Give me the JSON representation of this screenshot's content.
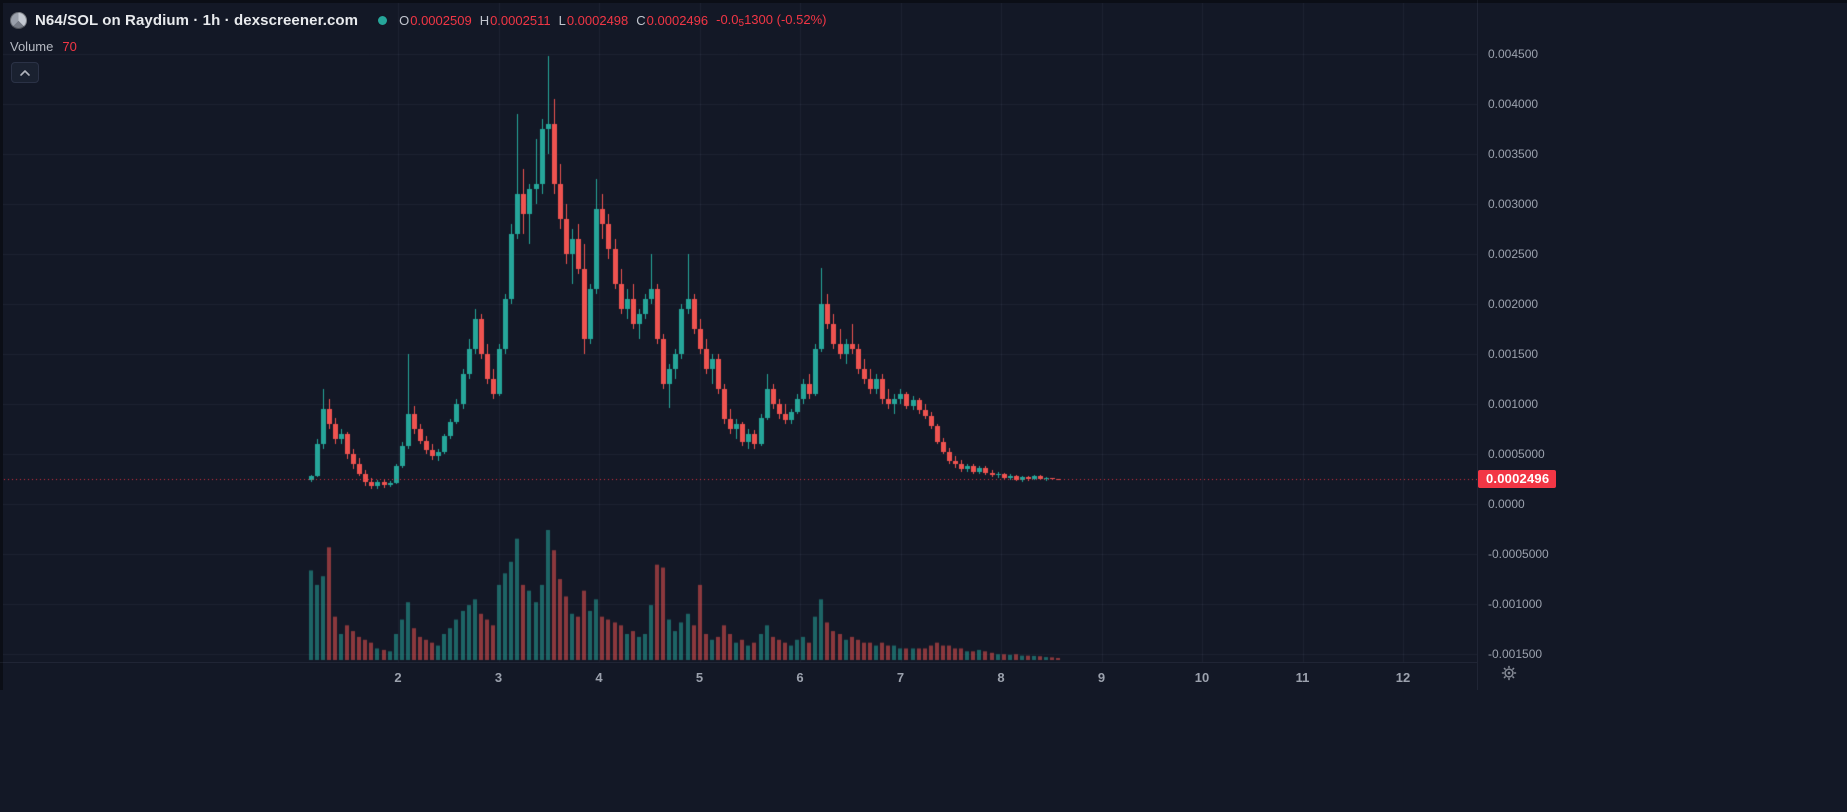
{
  "colors": {
    "background": "#131826",
    "up": "#26a69a",
    "down": "#ef5350",
    "accent_red": "#f23645",
    "tag_background": "#f23645",
    "title_text": "#e8eaed",
    "muted_text": "#9ba1ad"
  },
  "legend": {
    "title": "N64/SOL on Raydium · 1h · dexscreener.com",
    "ohlc": {
      "o_label": "O",
      "o": "0.0002509",
      "h_label": "H",
      "h": "0.0002511",
      "l_label": "L",
      "l": "0.0002498",
      "c_label": "C",
      "c": "0.0002496",
      "change_prefix": "-0.0",
      "change_sub": "5",
      "change_tail": "1300 (-0.52%)"
    },
    "volume_label": "Volume",
    "volume_value": "70"
  },
  "price_axis": {
    "labels": [
      "0.004500",
      "0.004000",
      "0.003500",
      "0.003000",
      "0.002500",
      "0.002000",
      "0.001500",
      "0.001000",
      "0.0005000",
      "0.0000",
      "-0.0005000",
      "-0.001000",
      "-0.001500"
    ],
    "last_price_tag": "0.0002496"
  },
  "time_axis": {
    "labels": [
      "2",
      "3",
      "4",
      "5",
      "6",
      "7",
      "8",
      "9",
      "10",
      "11",
      "12"
    ]
  },
  "chart_data": {
    "type": "candlestick",
    "title": "N64/SOL on Raydium · 1h",
    "symbol": "N64/SOL",
    "venue": "Raydium",
    "interval": "1h",
    "source": "dexscreener.com",
    "ylim": [
      -0.0015,
      0.0046
    ],
    "x_ticks": [
      2,
      3,
      4,
      5,
      6,
      7,
      8,
      9,
      10,
      11,
      12
    ],
    "grid": true,
    "last_close": 0.0002496,
    "last_candle": {
      "open": 0.0002509,
      "high": 0.0002511,
      "low": 0.0002498,
      "close": 0.0002496,
      "volume": 70,
      "change_pct": -0.52
    },
    "price_multiplier": 0.0001,
    "note": "candles are [open,high,low,close,volume]; o/h/l/c in units of price_multiplier (0.0001); hourly-equivalent bars estimated from pixels",
    "start_day": 1.13,
    "interval_days": 0.0605,
    "candles": [
      [
        2.4,
        2.9,
        2.2,
        2.8,
        3100
      ],
      [
        2.8,
        6.5,
        2.7,
        6.0,
        2600
      ],
      [
        6.0,
        11.5,
        5.5,
        9.5,
        2900
      ],
      [
        9.5,
        10.5,
        7.5,
        8.0,
        3900
      ],
      [
        8.0,
        8.6,
        6.0,
        6.5,
        1500
      ],
      [
        6.5,
        7.5,
        6.0,
        7.0,
        900
      ],
      [
        7.0,
        7.2,
        4.5,
        5.0,
        1200
      ],
      [
        5.0,
        5.5,
        3.5,
        4.0,
        1000
      ],
      [
        4.0,
        4.6,
        2.8,
        3.0,
        800
      ],
      [
        3.0,
        3.4,
        1.8,
        2.2,
        700
      ],
      [
        2.2,
        2.6,
        1.5,
        1.8,
        600
      ],
      [
        1.8,
        2.4,
        1.5,
        2.2,
        400
      ],
      [
        2.2,
        2.5,
        1.6,
        1.9,
        350
      ],
      [
        1.9,
        2.3,
        1.7,
        2.1,
        300
      ],
      [
        2.1,
        4.0,
        2.0,
        3.8,
        900
      ],
      [
        3.8,
        6.2,
        3.6,
        5.8,
        1400
      ],
      [
        5.8,
        15.0,
        5.5,
        9.0,
        2000
      ],
      [
        9.0,
        9.8,
        7.0,
        7.5,
        1100
      ],
      [
        7.5,
        8.0,
        6.0,
        6.3,
        800
      ],
      [
        6.3,
        6.8,
        5.0,
        5.4,
        700
      ],
      [
        5.4,
        6.0,
        4.4,
        4.8,
        600
      ],
      [
        4.8,
        5.5,
        4.3,
        5.2,
        500
      ],
      [
        5.2,
        7.0,
        5.0,
        6.8,
        900
      ],
      [
        6.8,
        8.5,
        6.5,
        8.2,
        1100
      ],
      [
        8.2,
        10.5,
        8.0,
        10.0,
        1400
      ],
      [
        10.0,
        13.5,
        9.5,
        13.0,
        1700
      ],
      [
        13.0,
        16.5,
        12.5,
        15.5,
        1900
      ],
      [
        15.5,
        19.5,
        15.0,
        18.5,
        2100
      ],
      [
        18.5,
        19.0,
        14.5,
        15.0,
        1600
      ],
      [
        15.0,
        16.0,
        12.0,
        12.5,
        1400
      ],
      [
        12.5,
        13.5,
        10.5,
        11.0,
        1200
      ],
      [
        11.0,
        16.0,
        10.8,
        15.5,
        2600
      ],
      [
        15.5,
        21.0,
        15.0,
        20.5,
        3000
      ],
      [
        20.5,
        28.0,
        20.0,
        27.0,
        3400
      ],
      [
        27.0,
        39.0,
        26.5,
        31.0,
        4200
      ],
      [
        31.0,
        33.5,
        27.0,
        29.0,
        2600
      ],
      [
        29.0,
        32.0,
        26.0,
        31.5,
        2400
      ],
      [
        31.5,
        36.5,
        30.0,
        32.0,
        2000
      ],
      [
        32.0,
        38.5,
        31.0,
        37.5,
        2600
      ],
      [
        37.5,
        44.8,
        35.0,
        38.0,
        4500
      ],
      [
        38.0,
        40.5,
        31.0,
        32.0,
        3800
      ],
      [
        32.0,
        34.0,
        27.5,
        28.5,
        2800
      ],
      [
        28.5,
        30.0,
        24.0,
        25.0,
        2200
      ],
      [
        25.0,
        27.5,
        22.0,
        26.5,
        1600
      ],
      [
        26.5,
        28.0,
        23.0,
        23.5,
        1500
      ],
      [
        23.5,
        26.0,
        15.0,
        16.5,
        2400
      ],
      [
        16.5,
        22.0,
        16.0,
        21.5,
        1700
      ],
      [
        21.5,
        32.5,
        21.0,
        29.5,
        2100
      ],
      [
        29.5,
        31.0,
        26.5,
        28.0,
        1500
      ],
      [
        28.0,
        29.0,
        24.5,
        25.5,
        1400
      ],
      [
        25.5,
        26.5,
        21.5,
        22.0,
        1300
      ],
      [
        22.0,
        23.5,
        19.0,
        19.5,
        1200
      ],
      [
        19.5,
        21.5,
        18.5,
        20.5,
        900
      ],
      [
        20.5,
        22.0,
        17.5,
        18.0,
        1000
      ],
      [
        18.0,
        19.5,
        16.5,
        19.0,
        800
      ],
      [
        19.0,
        21.0,
        18.5,
        20.5,
        900
      ],
      [
        20.5,
        25.0,
        20.0,
        21.5,
        1900
      ],
      [
        21.5,
        22.0,
        16.0,
        16.5,
        3300
      ],
      [
        16.5,
        17.0,
        11.5,
        12.0,
        3200
      ],
      [
        12.0,
        14.0,
        9.6,
        13.5,
        1400
      ],
      [
        13.5,
        15.5,
        12.5,
        15.0,
        1000
      ],
      [
        15.0,
        20.0,
        14.5,
        19.5,
        1300
      ],
      [
        19.5,
        25.0,
        19.0,
        20.5,
        1600
      ],
      [
        20.5,
        21.0,
        17.0,
        17.5,
        1200
      ],
      [
        17.5,
        18.5,
        15.0,
        15.5,
        2600
      ],
      [
        15.5,
        16.5,
        13.0,
        13.5,
        900
      ],
      [
        13.5,
        15.0,
        12.0,
        14.5,
        700
      ],
      [
        14.5,
        15.0,
        11.0,
        11.5,
        800
      ],
      [
        11.5,
        12.0,
        8.0,
        8.5,
        1200
      ],
      [
        8.5,
        9.5,
        7.0,
        7.5,
        900
      ],
      [
        7.5,
        8.5,
        6.5,
        8.0,
        600
      ],
      [
        8.0,
        8.2,
        5.8,
        6.2,
        700
      ],
      [
        6.2,
        7.5,
        5.5,
        7.0,
        500
      ],
      [
        7.0,
        7.4,
        5.5,
        6.0,
        600
      ],
      [
        6.0,
        9.0,
        5.8,
        8.6,
        900
      ],
      [
        8.6,
        13.0,
        8.4,
        11.5,
        1200
      ],
      [
        11.5,
        12.0,
        9.5,
        10.0,
        800
      ],
      [
        10.0,
        10.5,
        8.5,
        9.0,
        700
      ],
      [
        9.0,
        10.0,
        8.0,
        8.4,
        600
      ],
      [
        8.4,
        9.5,
        8.0,
        9.2,
        500
      ],
      [
        9.2,
        11.0,
        9.0,
        10.5,
        700
      ],
      [
        10.5,
        12.5,
        10.0,
        12.0,
        800
      ],
      [
        12.0,
        13.0,
        10.5,
        11.0,
        600
      ],
      [
        11.0,
        16.0,
        10.8,
        15.5,
        1500
      ],
      [
        15.5,
        23.6,
        15.2,
        20.0,
        2100
      ],
      [
        20.0,
        21.0,
        17.5,
        18.0,
        1300
      ],
      [
        18.0,
        19.0,
        15.5,
        16.0,
        1000
      ],
      [
        16.0,
        17.5,
        14.5,
        15.0,
        900
      ],
      [
        15.0,
        16.5,
        14.0,
        16.0,
        700
      ],
      [
        16.0,
        18.0,
        15.0,
        15.5,
        800
      ],
      [
        15.5,
        16.0,
        13.0,
        13.5,
        700
      ],
      [
        13.5,
        14.5,
        12.0,
        12.5,
        600
      ],
      [
        12.5,
        13.5,
        11.0,
        11.5,
        600
      ],
      [
        11.5,
        13.0,
        11.0,
        12.5,
        500
      ],
      [
        12.5,
        13.0,
        10.0,
        10.5,
        600
      ],
      [
        10.5,
        11.5,
        9.5,
        10.0,
        500
      ],
      [
        10.0,
        11.0,
        9.0,
        10.5,
        500
      ],
      [
        10.5,
        11.5,
        10.0,
        11.0,
        400
      ],
      [
        11.0,
        11.2,
        9.5,
        9.8,
        400
      ],
      [
        9.8,
        10.8,
        9.4,
        10.4,
        400
      ],
      [
        10.4,
        10.6,
        9.0,
        9.4,
        400
      ],
      [
        9.4,
        10.0,
        8.5,
        8.8,
        400
      ],
      [
        8.8,
        9.2,
        7.5,
        7.8,
        500
      ],
      [
        7.8,
        8.0,
        6.0,
        6.2,
        600
      ],
      [
        6.2,
        6.6,
        5.0,
        5.2,
        500
      ],
      [
        5.2,
        5.6,
        4.0,
        4.3,
        500
      ],
      [
        4.3,
        4.8,
        3.6,
        4.0,
        400
      ],
      [
        4.0,
        4.4,
        3.2,
        3.5,
        400
      ],
      [
        3.5,
        4.0,
        3.2,
        3.8,
        300
      ],
      [
        3.8,
        4.0,
        3.0,
        3.2,
        300
      ],
      [
        3.2,
        3.8,
        3.0,
        3.6,
        350
      ],
      [
        3.6,
        3.8,
        2.9,
        3.1,
        300
      ],
      [
        3.1,
        3.4,
        2.7,
        2.9,
        250
      ],
      [
        2.9,
        3.2,
        2.6,
        3.0,
        200
      ],
      [
        3.0,
        3.1,
        2.5,
        2.6,
        200
      ],
      [
        2.6,
        3.0,
        2.4,
        2.8,
        180
      ],
      [
        2.8,
        2.9,
        2.3,
        2.4,
        200
      ],
      [
        2.4,
        2.8,
        2.2,
        2.7,
        150
      ],
      [
        2.7,
        2.8,
        2.3,
        2.5,
        150
      ],
      [
        2.5,
        2.9,
        2.4,
        2.8,
        140
      ],
      [
        2.8,
        2.9,
        2.4,
        2.5,
        130
      ],
      [
        2.5,
        2.7,
        2.3,
        2.6,
        100
      ],
      [
        2.6,
        2.65,
        2.45,
        2.509,
        90
      ],
      [
        2.509,
        2.511,
        2.498,
        2.496,
        70
      ]
    ]
  }
}
